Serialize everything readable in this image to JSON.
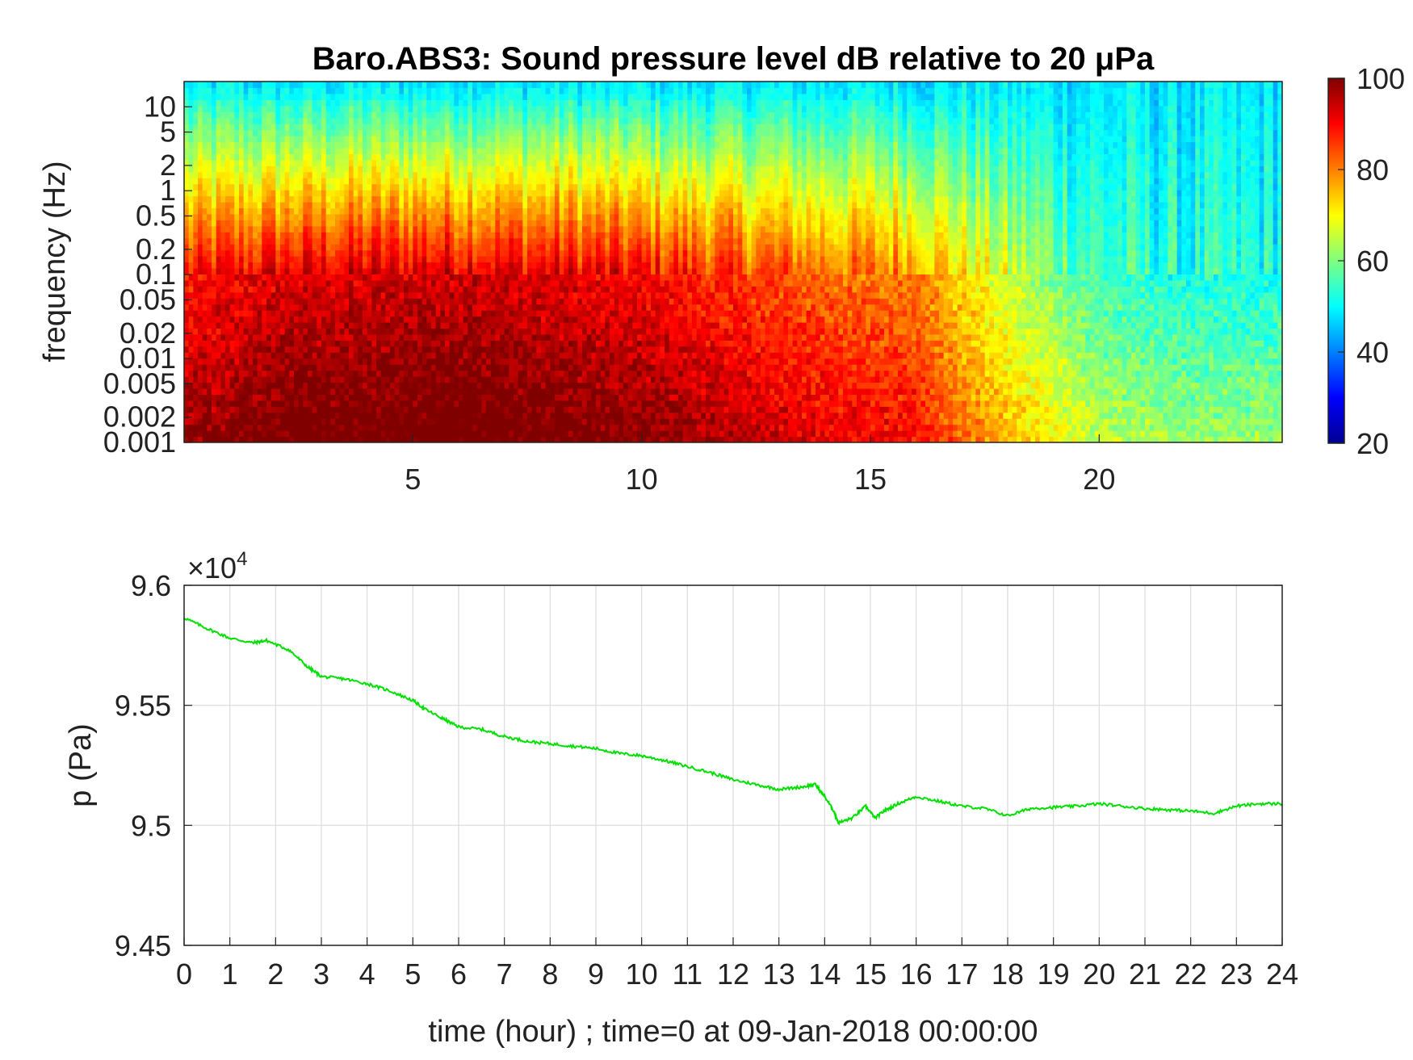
{
  "chart_data": [
    {
      "type": "heatmap",
      "title": "Baro.ABS3: Sound pressure level dB relative to 20 μPa",
      "xlabel": "",
      "ylabel": "frequency (Hz)",
      "x_ticks": [
        5,
        10,
        15,
        20
      ],
      "xlim": [
        0,
        24
      ],
      "y_ticks": [
        10,
        5,
        2,
        1,
        0.5,
        0.2,
        0.1,
        0.05,
        0.02,
        0.01,
        0.005,
        0.002,
        0.001
      ],
      "y_tick_labels": [
        "10",
        "5",
        "2",
        "1",
        "0.5",
        "0.2",
        "0.1",
        "0.05",
        "0.02",
        "0.01",
        "0.005",
        "0.002",
        "0.001"
      ],
      "ylim": [
        0.001,
        20
      ],
      "y_scale": "log",
      "colorbar": {
        "ticks": [
          100,
          80,
          60,
          40,
          20
        ],
        "range": [
          20,
          100
        ],
        "colormap": "jet"
      },
      "description_values": {
        "hours": [
          0,
          2,
          4,
          6,
          8,
          10,
          12,
          14,
          16,
          17,
          18,
          20,
          22,
          24
        ],
        "level_at_0_1Hz": [
          88,
          92,
          93,
          94,
          92,
          90,
          86,
          82,
          80,
          72,
          66,
          55,
          52,
          52
        ]
      }
    },
    {
      "type": "line",
      "title": "",
      "xlabel": "time (hour) ; time=0 at 09-Jan-2018 00:00:00",
      "ylabel": "p (Pa)",
      "y_multiplier": "×10",
      "y_multiplier_exp": "4",
      "x_ticks": [
        0,
        1,
        2,
        3,
        4,
        5,
        6,
        7,
        8,
        9,
        10,
        11,
        12,
        13,
        14,
        15,
        16,
        17,
        18,
        19,
        20,
        21,
        22,
        23,
        24
      ],
      "y_ticks": [
        9.6,
        9.55,
        9.5,
        9.45
      ],
      "y_tick_labels": [
        "9.6",
        "9.55",
        "9.5",
        "9.45"
      ],
      "xlim": [
        0,
        24
      ],
      "ylim": [
        9.45,
        9.6
      ],
      "grid": true,
      "series": [
        {
          "color": "#00e000",
          "x": [
            0,
            0.5,
            1,
            1.5,
            1.8,
            2.3,
            2.7,
            3,
            3.5,
            4,
            4.5,
            5,
            5.3,
            5.7,
            6,
            6.5,
            7,
            7.5,
            8,
            8.5,
            9,
            9.5,
            10,
            10.5,
            11,
            11.5,
            12,
            12.5,
            13,
            13.5,
            13.8,
            14.0,
            14.2,
            14.3,
            14.6,
            14.9,
            15.1,
            15.3,
            15.6,
            16.0,
            16.5,
            17,
            17.5,
            18,
            18.5,
            19,
            19.5,
            20,
            20.5,
            21,
            21.5,
            22,
            22.5,
            23,
            23.5,
            24
          ],
          "y": [
            9.5865,
            9.582,
            9.578,
            9.576,
            9.577,
            9.573,
            9.566,
            9.562,
            9.561,
            9.559,
            9.556,
            9.552,
            9.548,
            9.544,
            9.541,
            9.54,
            9.537,
            9.535,
            9.534,
            9.533,
            9.532,
            9.53,
            9.529,
            9.527,
            9.5245,
            9.522,
            9.519,
            9.517,
            9.515,
            9.516,
            9.517,
            9.512,
            9.506,
            9.501,
            9.503,
            9.508,
            9.503,
            9.506,
            9.509,
            9.512,
            9.51,
            9.508,
            9.507,
            9.504,
            9.507,
            9.5075,
            9.508,
            9.509,
            9.508,
            9.507,
            9.5065,
            9.506,
            9.505,
            9.508,
            9.509,
            9.509
          ]
        }
      ]
    }
  ]
}
